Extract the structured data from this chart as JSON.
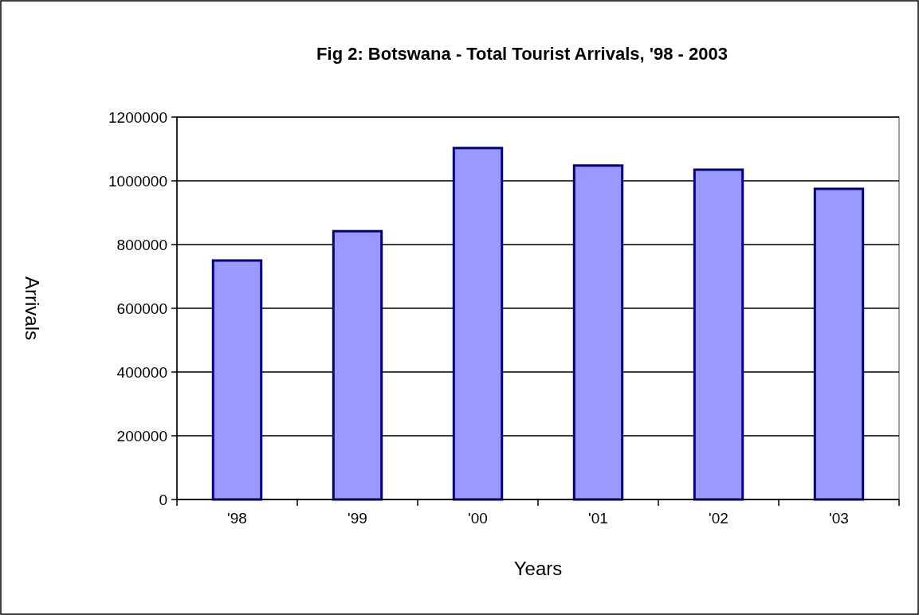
{
  "chart_data": {
    "type": "bar",
    "title": "Fig 2: Botswana - Total Tourist Arrivals, '98 - 2003",
    "xlabel": "Years",
    "ylabel": "Arrivals",
    "categories": [
      "'98",
      "'99",
      "'00",
      "'01",
      "'02",
      "'03"
    ],
    "values": [
      750000,
      842000,
      1103000,
      1048000,
      1035000,
      975000
    ],
    "color": "#9999ff",
    "ylim": [
      0,
      1200000
    ],
    "yticks": [
      0,
      200000,
      400000,
      600000,
      800000,
      1000000,
      1200000
    ],
    "grid": "y"
  }
}
